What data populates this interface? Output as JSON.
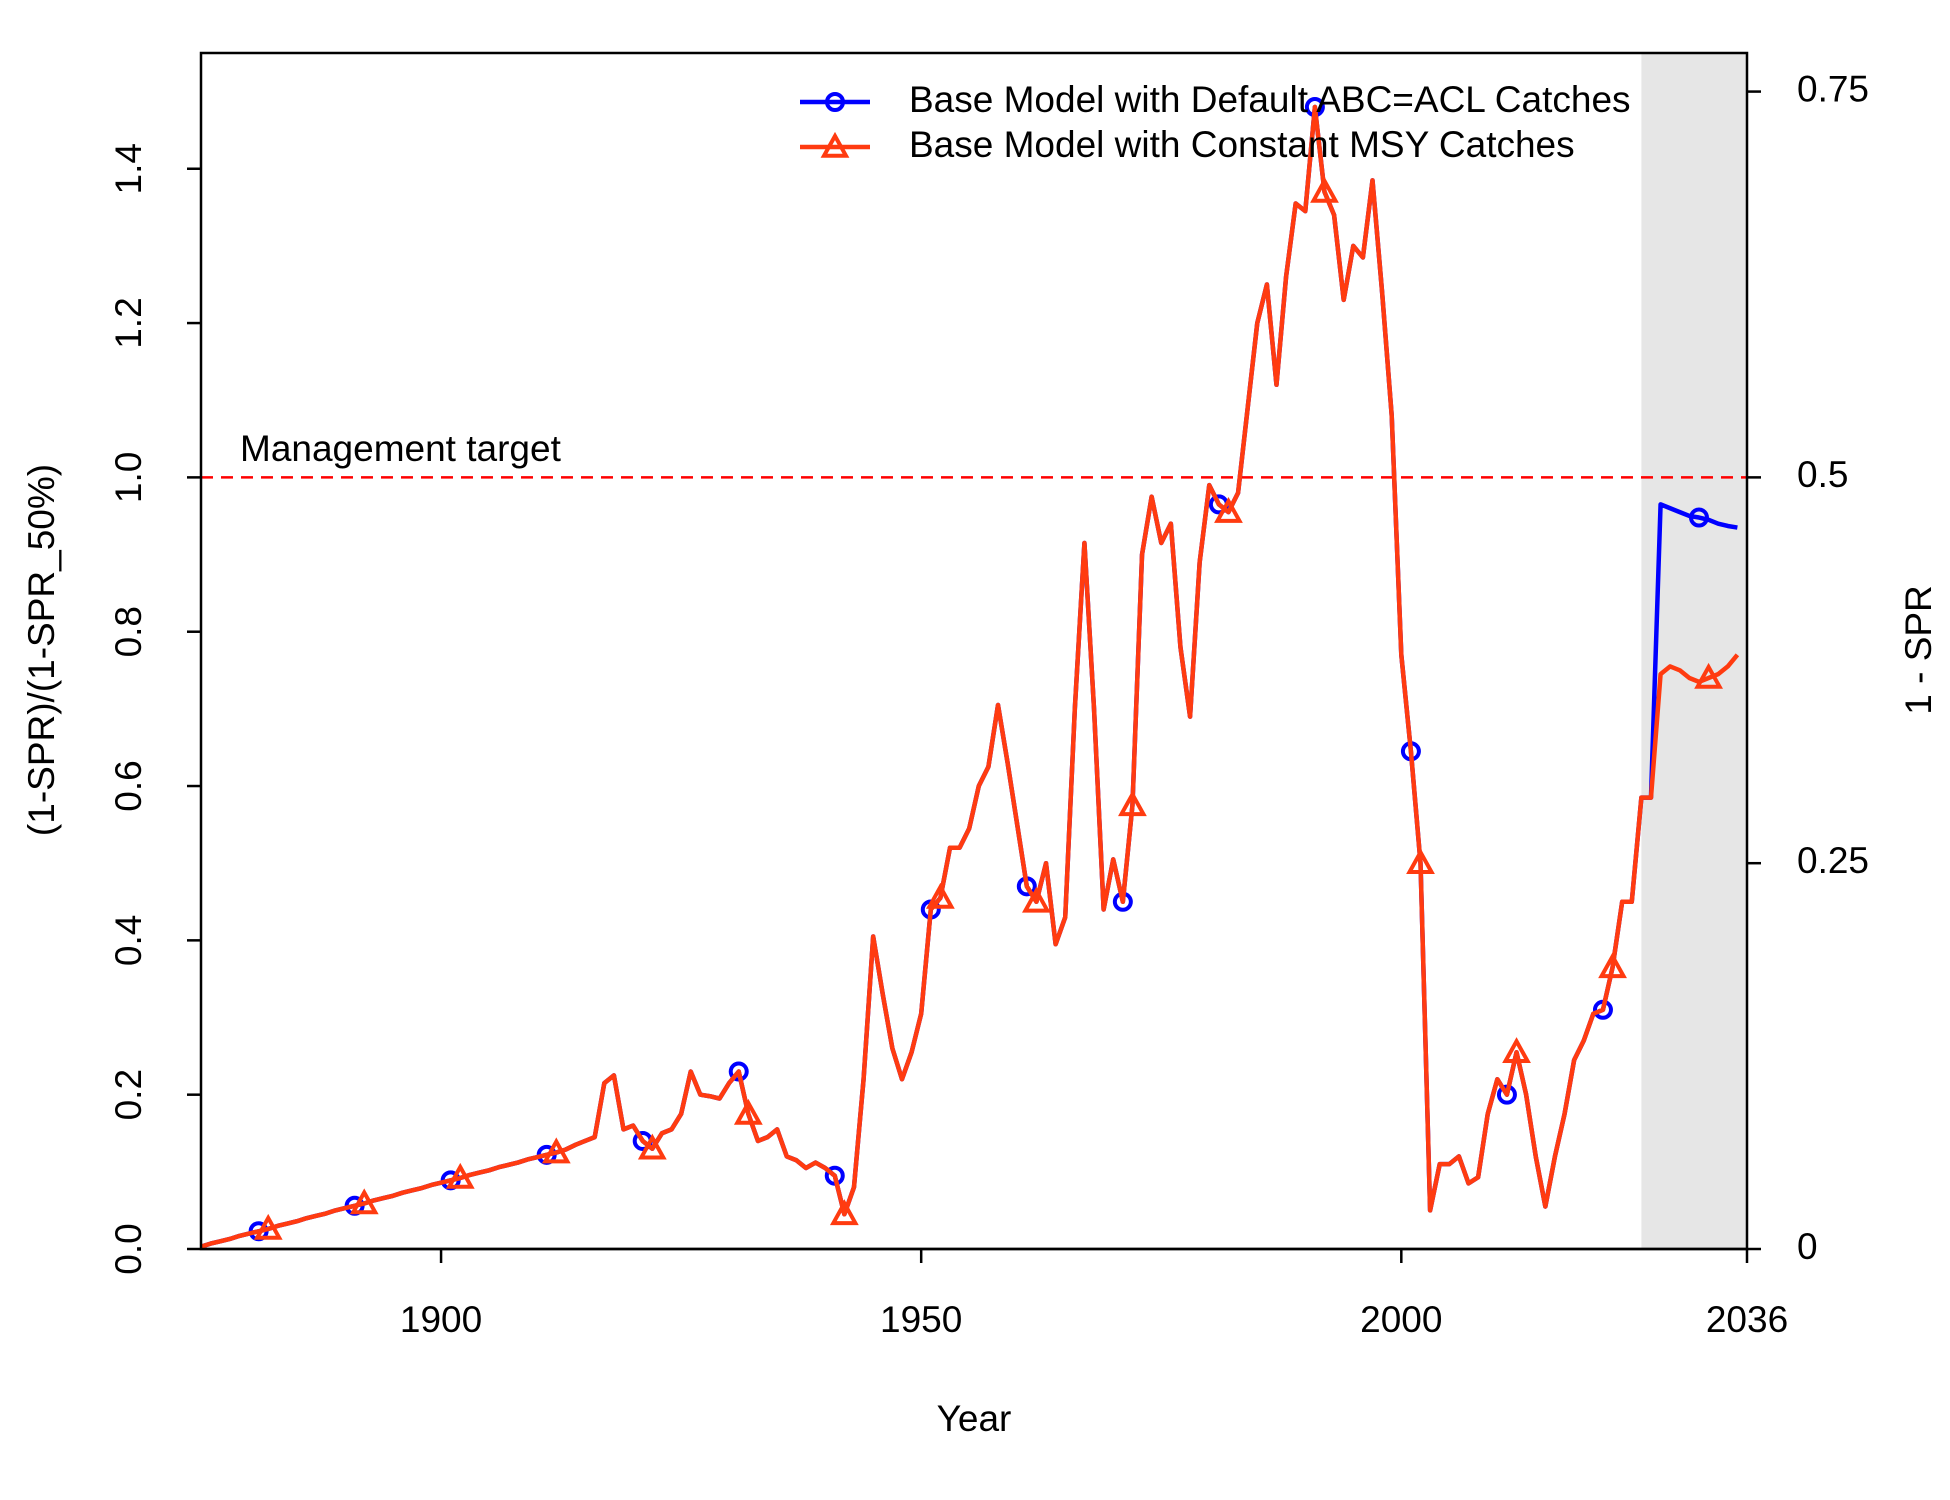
{
  "chart_data": {
    "type": "line",
    "x_label": "Year",
    "y_label": "(1-SPR)/(1-SPR_50%)",
    "y2_label": "1 - SPR",
    "x": [
      1875,
      1876,
      1877,
      1878,
      1879,
      1880,
      1881,
      1882,
      1883,
      1884,
      1885,
      1886,
      1887,
      1888,
      1889,
      1890,
      1891,
      1892,
      1893,
      1894,
      1895,
      1896,
      1897,
      1898,
      1899,
      1900,
      1901,
      1902,
      1903,
      1904,
      1905,
      1906,
      1907,
      1908,
      1909,
      1910,
      1911,
      1912,
      1913,
      1914,
      1915,
      1916,
      1917,
      1918,
      1919,
      1920,
      1921,
      1922,
      1923,
      1924,
      1925,
      1926,
      1927,
      1928,
      1929,
      1930,
      1931,
      1932,
      1933,
      1934,
      1935,
      1936,
      1937,
      1938,
      1939,
      1940,
      1941,
      1942,
      1943,
      1944,
      1945,
      1946,
      1947,
      1948,
      1949,
      1950,
      1951,
      1952,
      1953,
      1954,
      1955,
      1956,
      1957,
      1958,
      1959,
      1960,
      1961,
      1962,
      1963,
      1964,
      1965,
      1966,
      1967,
      1968,
      1969,
      1970,
      1971,
      1972,
      1973,
      1974,
      1975,
      1976,
      1977,
      1978,
      1979,
      1980,
      1981,
      1982,
      1983,
      1984,
      1985,
      1986,
      1987,
      1988,
      1989,
      1990,
      1991,
      1992,
      1993,
      1994,
      1995,
      1996,
      1997,
      1998,
      1999,
      2000,
      2001,
      2002,
      2003,
      2004,
      2005,
      2006,
      2007,
      2008,
      2009,
      2010,
      2011,
      2012,
      2013,
      2014,
      2015,
      2016,
      2017,
      2018,
      2019,
      2020,
      2021,
      2022,
      2023,
      2024,
      2025,
      2026,
      2027,
      2028,
      2029,
      2030,
      2031,
      2032,
      2033,
      2034,
      2035
    ],
    "series": [
      {
        "name": "Base Model with Default ABC=ACL Catches",
        "color": "#0000ff",
        "marker": "circle",
        "markers_at": [
          1881,
          1891,
          1901,
          1911,
          1921,
          1931,
          1941,
          1951,
          1961,
          1971,
          1981,
          1991,
          2001,
          2011,
          2021,
          2031
        ],
        "values": [
          0.003,
          0.007,
          0.01,
          0.013,
          0.017,
          0.02,
          0.023,
          0.026,
          0.03,
          0.033,
          0.036,
          0.04,
          0.043,
          0.046,
          0.05,
          0.053,
          0.056,
          0.059,
          0.063,
          0.066,
          0.069,
          0.073,
          0.076,
          0.079,
          0.083,
          0.086,
          0.089,
          0.092,
          0.096,
          0.099,
          0.102,
          0.106,
          0.109,
          0.112,
          0.116,
          0.119,
          0.122,
          0.125,
          0.129,
          0.135,
          0.14,
          0.145,
          0.215,
          0.225,
          0.155,
          0.16,
          0.14,
          0.13,
          0.15,
          0.155,
          0.175,
          0.23,
          0.2,
          0.198,
          0.195,
          0.215,
          0.23,
          0.175,
          0.14,
          0.145,
          0.155,
          0.12,
          0.115,
          0.105,
          0.112,
          0.105,
          0.095,
          0.045,
          0.08,
          0.22,
          0.405,
          0.33,
          0.26,
          0.22,
          0.255,
          0.305,
          0.44,
          0.455,
          0.52,
          0.52,
          0.545,
          0.6,
          0.625,
          0.705,
          0.63,
          0.55,
          0.47,
          0.45,
          0.5,
          0.395,
          0.43,
          0.7,
          0.915,
          0.7,
          0.44,
          0.505,
          0.45,
          0.575,
          0.9,
          0.975,
          0.915,
          0.94,
          0.78,
          0.69,
          0.89,
          0.99,
          0.965,
          0.955,
          0.98,
          1.09,
          1.2,
          1.25,
          1.12,
          1.26,
          1.355,
          1.345,
          1.48,
          1.37,
          1.34,
          1.23,
          1.3,
          1.285,
          1.385,
          1.24,
          1.08,
          0.77,
          0.645,
          0.5,
          0.05,
          0.11,
          0.11,
          0.12,
          0.085,
          0.093,
          0.175,
          0.22,
          0.2,
          0.255,
          0.2,
          0.12,
          0.055,
          0.12,
          0.175,
          0.245,
          0.27,
          0.305,
          0.31,
          0.365,
          0.45,
          0.45,
          0.585,
          0.585,
          0.965,
          0.96,
          0.955,
          0.95,
          0.948,
          0.945,
          0.94,
          0.937,
          0.935
        ]
      },
      {
        "name": "Base Model with Constant MSY Catches",
        "color": "#ff3b10",
        "marker": "triangle",
        "markers_at": [
          1882,
          1892,
          1902,
          1912,
          1922,
          1932,
          1942,
          1952,
          1962,
          1972,
          1982,
          1992,
          2002,
          2012,
          2022,
          2032
        ],
        "values": [
          0.003,
          0.007,
          0.01,
          0.013,
          0.017,
          0.02,
          0.023,
          0.026,
          0.03,
          0.033,
          0.036,
          0.04,
          0.043,
          0.046,
          0.05,
          0.053,
          0.056,
          0.059,
          0.063,
          0.066,
          0.069,
          0.073,
          0.076,
          0.079,
          0.083,
          0.086,
          0.089,
          0.092,
          0.096,
          0.099,
          0.102,
          0.106,
          0.109,
          0.112,
          0.116,
          0.119,
          0.122,
          0.125,
          0.129,
          0.135,
          0.14,
          0.145,
          0.215,
          0.225,
          0.155,
          0.16,
          0.14,
          0.13,
          0.15,
          0.155,
          0.175,
          0.23,
          0.2,
          0.198,
          0.195,
          0.215,
          0.23,
          0.175,
          0.14,
          0.145,
          0.155,
          0.12,
          0.115,
          0.105,
          0.112,
          0.105,
          0.095,
          0.045,
          0.08,
          0.22,
          0.405,
          0.33,
          0.26,
          0.22,
          0.255,
          0.305,
          0.44,
          0.455,
          0.52,
          0.52,
          0.545,
          0.6,
          0.625,
          0.705,
          0.63,
          0.55,
          0.47,
          0.45,
          0.5,
          0.395,
          0.43,
          0.7,
          0.915,
          0.7,
          0.44,
          0.505,
          0.45,
          0.575,
          0.9,
          0.975,
          0.915,
          0.94,
          0.78,
          0.69,
          0.89,
          0.99,
          0.965,
          0.955,
          0.98,
          1.09,
          1.2,
          1.25,
          1.12,
          1.26,
          1.355,
          1.345,
          1.48,
          1.37,
          1.34,
          1.23,
          1.3,
          1.285,
          1.385,
          1.24,
          1.08,
          0.77,
          0.645,
          0.5,
          0.05,
          0.11,
          0.11,
          0.12,
          0.085,
          0.093,
          0.175,
          0.22,
          0.2,
          0.255,
          0.2,
          0.12,
          0.055,
          0.12,
          0.175,
          0.245,
          0.27,
          0.305,
          0.31,
          0.365,
          0.45,
          0.45,
          0.585,
          0.585,
          0.745,
          0.755,
          0.75,
          0.74,
          0.735,
          0.74,
          0.745,
          0.755,
          0.77
        ]
      }
    ],
    "xlim": [
      1875,
      2036
    ],
    "xticks": [
      1900,
      1950,
      2000,
      2036
    ],
    "ylim": [
      0,
      1.55
    ],
    "yticks": [
      {
        "value": 0,
        "label": "0.0"
      },
      0.2,
      0.4,
      0.6,
      0.8,
      {
        "value": 1,
        "label": "1.0"
      },
      1.2,
      1.4
    ],
    "y2lim": [
      0,
      0.775
    ],
    "y2ticks": [
      0,
      0.25,
      0.5,
      0.75
    ],
    "target": {
      "value": 1,
      "label": "Management target",
      "color": "#ff0000"
    },
    "shaded_xlim": [
      2025,
      2036
    ],
    "shade_color": "#e6e6e6",
    "legend": "top-right"
  }
}
